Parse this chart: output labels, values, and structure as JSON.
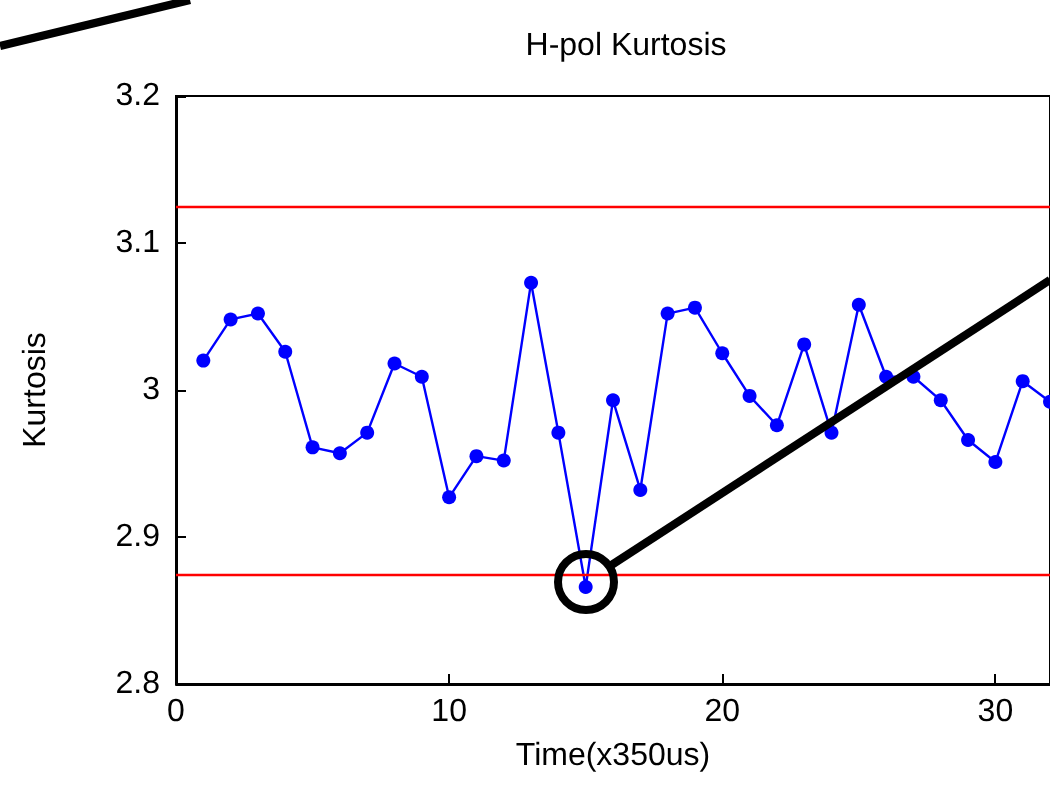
{
  "chart_data": {
    "type": "line",
    "title": "H-pol Kurtosis",
    "xlabel": "Time(x350us)",
    "ylabel": "Kurtosis",
    "x": [
      1,
      2,
      3,
      4,
      5,
      6,
      7,
      8,
      9,
      10,
      11,
      12,
      13,
      14,
      15,
      16,
      17,
      18,
      19,
      20,
      21,
      22,
      23,
      24,
      25,
      26,
      27,
      28,
      29,
      30,
      31,
      32
    ],
    "series": [
      {
        "color": "#0000ff",
        "values": [
          3.02,
          3.048,
          3.052,
          3.026,
          2.961,
          2.957,
          2.971,
          3.018,
          3.009,
          2.927,
          2.955,
          2.952,
          3.073,
          2.971,
          2.866,
          2.993,
          2.932,
          3.052,
          3.056,
          3.025,
          2.996,
          2.976,
          3.031,
          2.971,
          3.058,
          3.009,
          3.009,
          2.993,
          2.966,
          2.951,
          3.006,
          2.992
        ]
      }
    ],
    "xlim": [
      0,
      32
    ],
    "xticks": [
      0,
      10,
      20,
      30
    ],
    "ylim": [
      2.8,
      3.2
    ],
    "yticks": [
      2.8,
      2.9,
      3,
      3.1,
      3.2
    ],
    "ref_lines": [
      {
        "axis": "y",
        "value": 3.125,
        "color": "#ff0000"
      },
      {
        "axis": "y",
        "value": 2.875,
        "color": "#ff0000"
      }
    ],
    "grid": false,
    "marker": "circle",
    "line_style": "solid"
  }
}
